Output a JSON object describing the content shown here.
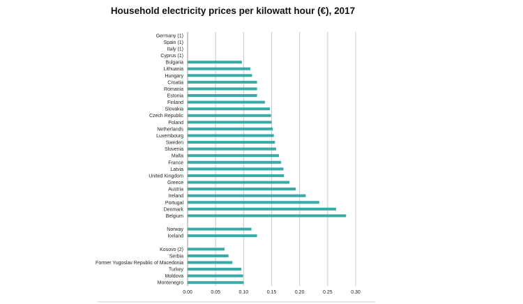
{
  "chart_data": {
    "type": "bar",
    "orientation": "horizontal",
    "title": "Household electricity prices per kilowatt hour (€), 2017",
    "xlabel": "",
    "ylabel": "",
    "xlim": [
      0,
      0.3
    ],
    "xticks": [
      "0.00",
      "0.05",
      "0.10",
      "0.15",
      "0.20",
      "0.25",
      "0.30"
    ],
    "grid": true,
    "bar_color": "#3aaaa6",
    "categories": [
      "Germany (1)",
      "Spain (1)",
      "Italy (1)",
      "Cyprus (1)",
      "Bulgaria",
      "Lithuania",
      "Hungary",
      "Croatia",
      "Romania",
      "Estonia",
      "Finland",
      "Slovakia",
      "Czech Republic",
      "Poland",
      "Netherlands",
      "Luxembourg",
      "Sweden",
      "Slovenia",
      "Malta",
      "France",
      "Latvia",
      "United Kingdom",
      "Greece",
      "Austria",
      "Ireland",
      "Portugal",
      "Denmark",
      "Belgium",
      "",
      "Norway",
      "Iceland",
      "",
      "Kosovo (2)",
      "Serbia",
      "Former Yugoslav Republic of Macedonia",
      "Turkey",
      "Moldova",
      "Montenegro"
    ],
    "values": [
      null,
      null,
      null,
      null,
      0.097,
      0.112,
      0.115,
      0.124,
      0.124,
      0.124,
      0.138,
      0.147,
      0.149,
      0.15,
      0.152,
      0.154,
      0.156,
      0.158,
      0.163,
      0.167,
      0.171,
      0.172,
      0.182,
      0.193,
      0.211,
      0.235,
      0.265,
      0.283,
      null,
      0.114,
      0.124,
      null,
      0.066,
      0.073,
      0.08,
      0.096,
      0.099,
      0.1
    ]
  }
}
